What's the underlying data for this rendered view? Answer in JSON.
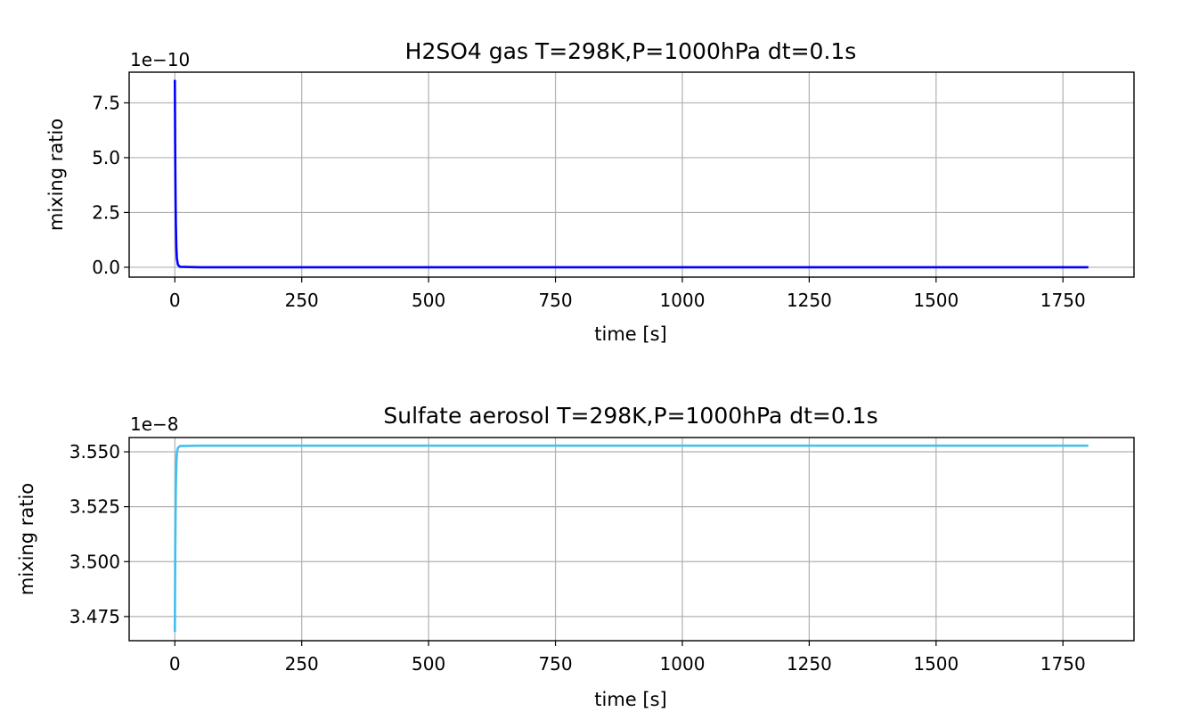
{
  "chart_data": [
    {
      "type": "line",
      "title": "H2SO4 gas T=298K,P=1000hPa dt=0.1s",
      "xlabel": "time [s]",
      "ylabel": "mixing ratio",
      "y_offset_label": "1e−10",
      "grid": true,
      "xlim": [
        -90,
        1890
      ],
      "ylim": [
        -0.45,
        8.9
      ],
      "x_ticks": [
        0,
        250,
        500,
        750,
        1000,
        1250,
        1500,
        1750
      ],
      "x_tick_labels": [
        "0",
        "250",
        "500",
        "750",
        "1000",
        "1250",
        "1500",
        "1750"
      ],
      "y_ticks": [
        0.0,
        2.5,
        5.0,
        7.5
      ],
      "y_tick_labels": [
        "0.0",
        "2.5",
        "5.0",
        "7.5"
      ],
      "color": "#0000ff",
      "series": [
        {
          "x": [
            0,
            0.3,
            0.6,
            1,
            1.5,
            2,
            3,
            4,
            6,
            10,
            50,
            200,
            500,
            1000,
            1500,
            1800
          ],
          "y": [
            8.55,
            7.2,
            5.8,
            4.3,
            3.0,
            2.0,
            0.9,
            0.4,
            0.12,
            0.02,
            0.0,
            0.0,
            0.0,
            0.0,
            0.0,
            0.0
          ]
        }
      ]
    },
    {
      "type": "line",
      "title": "Sulfate aerosol T=298K,P=1000hPa dt=0.1s",
      "xlabel": "time [s]",
      "ylabel": "mixing ratio",
      "y_offset_label": "1e−8",
      "grid": true,
      "xlim": [
        -90,
        1890
      ],
      "ylim": [
        3.464,
        3.5565
      ],
      "x_ticks": [
        0,
        250,
        500,
        750,
        1000,
        1250,
        1500,
        1750
      ],
      "x_tick_labels": [
        "0",
        "250",
        "500",
        "750",
        "1000",
        "1250",
        "1500",
        "1750"
      ],
      "y_ticks": [
        3.475,
        3.5,
        3.525,
        3.55
      ],
      "y_tick_labels": [
        "3.475",
        "3.500",
        "3.525",
        "3.550"
      ],
      "color": "#3fbff0",
      "series": [
        {
          "x": [
            0,
            0.3,
            0.6,
            1,
            1.5,
            2,
            3,
            4,
            6,
            10,
            50,
            200,
            500,
            1000,
            1500,
            1800
          ],
          "y": [
            3.468,
            3.482,
            3.496,
            3.511,
            3.524,
            3.534,
            3.545,
            3.5495,
            3.5518,
            3.5526,
            3.5528,
            3.5528,
            3.5528,
            3.5528,
            3.5528,
            3.5528
          ]
        }
      ]
    }
  ]
}
